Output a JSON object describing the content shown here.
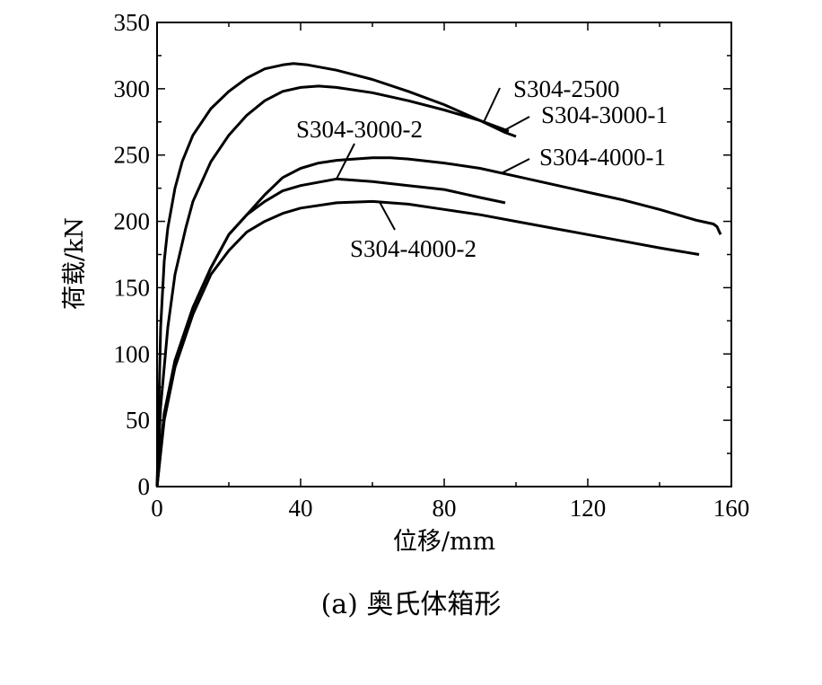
{
  "caption": "(a) 奥氏体箱形",
  "chart_data": {
    "type": "line",
    "xlabel": "位移/mm",
    "ylabel": "荷载/kN",
    "xlim": [
      0,
      160
    ],
    "ylim": [
      0,
      350
    ],
    "xticks": [
      0,
      40,
      80,
      120,
      160
    ],
    "yticks": [
      0,
      50,
      100,
      150,
      200,
      250,
      300,
      350
    ],
    "grid": false,
    "legend": "inline labels",
    "series": [
      {
        "name": "S304-2500",
        "x": [
          0,
          1,
          2,
          3,
          5,
          7,
          10,
          15,
          20,
          25,
          30,
          35,
          38,
          42,
          50,
          60,
          70,
          80,
          90,
          97,
          100
        ],
        "y": [
          0,
          120,
          170,
          195,
          225,
          245,
          265,
          285,
          298,
          308,
          315,
          318,
          319,
          318,
          314,
          307,
          298,
          288,
          276,
          267,
          264
        ]
      },
      {
        "name": "S304-3000-1",
        "x": [
          0,
          1,
          3,
          5,
          8,
          10,
          15,
          20,
          25,
          30,
          35,
          40,
          45,
          50,
          60,
          70,
          80,
          90,
          98
        ],
        "y": [
          0,
          60,
          120,
          160,
          195,
          215,
          245,
          265,
          280,
          291,
          298,
          301,
          302,
          301,
          297,
          291,
          284,
          276,
          268
        ]
      },
      {
        "name": "S304-3000-2",
        "x": [
          0,
          2,
          5,
          10,
          15,
          20,
          25,
          30,
          35,
          40,
          50,
          60,
          70,
          80,
          90,
          97
        ],
        "y": [
          0,
          55,
          95,
          135,
          165,
          190,
          205,
          215,
          223,
          227,
          232,
          230,
          227,
          224,
          218,
          214
        ]
      },
      {
        "name": "S304-4000-1",
        "x": [
          0,
          2,
          5,
          10,
          15,
          20,
          25,
          30,
          35,
          40,
          45,
          50,
          60,
          65,
          70,
          80,
          90,
          100,
          110,
          120,
          130,
          140,
          150,
          155,
          156,
          157
        ],
        "y": [
          0,
          55,
          95,
          135,
          165,
          190,
          205,
          220,
          233,
          240,
          244,
          246,
          248,
          248,
          247,
          244,
          240,
          234,
          228,
          222,
          216,
          209,
          201,
          198,
          196,
          190
        ]
      },
      {
        "name": "S304-4000-2",
        "x": [
          0,
          2,
          5,
          10,
          15,
          20,
          25,
          30,
          35,
          40,
          50,
          60,
          70,
          80,
          90,
          100,
          110,
          120,
          130,
          140,
          151
        ],
        "y": [
          0,
          50,
          90,
          130,
          160,
          178,
          192,
          200,
          206,
          210,
          214,
          215,
          213,
          209,
          205,
          200,
          195,
          190,
          185,
          180,
          175
        ]
      }
    ],
    "annotations": [
      {
        "text": "S304-2500",
        "series": 0,
        "at_x": 91
      },
      {
        "text": "S304-3000-1",
        "series": 1,
        "at_x": 97
      },
      {
        "text": "S304-3000-2",
        "series": 2,
        "at_x": 50
      },
      {
        "text": "S304-4000-1",
        "series": 3,
        "at_x": 96
      },
      {
        "text": "S304-4000-2",
        "series": 4,
        "at_x": 62
      }
    ]
  }
}
